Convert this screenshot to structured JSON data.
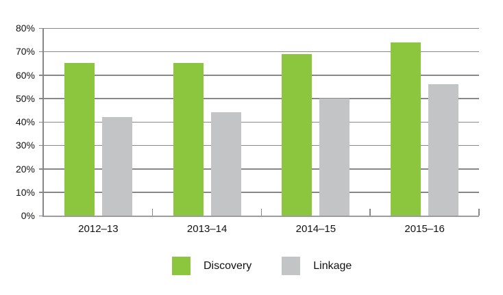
{
  "chart_data": {
    "type": "bar",
    "title": "",
    "xlabel": "",
    "ylabel": "",
    "categories": [
      "2012–13",
      "2013–14",
      "2014–15",
      "2015–16"
    ],
    "series": [
      {
        "name": "Discovery",
        "color": "#8CC63E",
        "values": [
          65,
          65,
          69,
          74
        ]
      },
      {
        "name": "Linkage",
        "color": "#C2C4C6",
        "values": [
          42,
          44,
          50,
          56
        ]
      }
    ],
    "ylim": [
      0,
      80
    ],
    "ytick_step": 10,
    "ytick_labels": [
      "0%",
      "10%",
      "20%",
      "30%",
      "40%",
      "50%",
      "60%",
      "70%",
      "80%"
    ],
    "grid": true,
    "gridline_color": "#85878a",
    "legend_position": "bottom-center",
    "background_color": "#ffffff"
  }
}
